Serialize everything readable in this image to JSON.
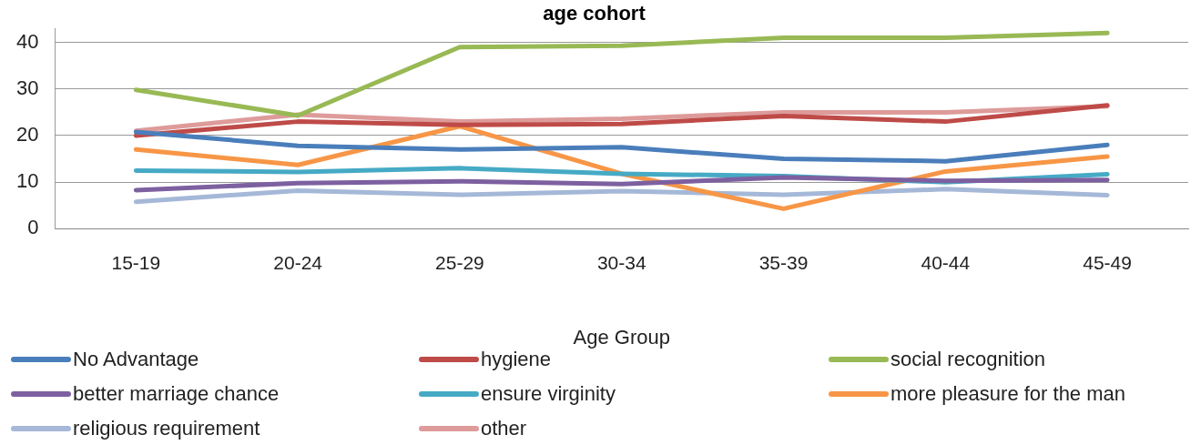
{
  "chart_data": {
    "type": "line",
    "title": "age cohort",
    "xlabel": "Age Group",
    "categories": [
      "15-19",
      "20-24",
      "25-29",
      "30-34",
      "35-39",
      "40-44",
      "45-49"
    ],
    "ylim": [
      0,
      43
    ],
    "yticks": [
      0,
      10,
      20,
      30,
      40
    ],
    "grid": "y",
    "legend": "bottom",
    "marker": "none",
    "line_style": "solid",
    "series": [
      {
        "name": "No Advantage",
        "color": "#4a7ebb",
        "values": [
          20.8,
          17.8,
          17,
          17.5,
          15,
          14.5,
          18
        ]
      },
      {
        "name": "hygiene",
        "color": "#be4b48",
        "values": [
          20,
          23,
          22.3,
          22.5,
          24.2,
          23,
          26.5
        ]
      },
      {
        "name": "social recognition",
        "color": "#98b954",
        "values": [
          29.8,
          24.3,
          39,
          39.3,
          41,
          41,
          42
        ]
      },
      {
        "name": "better marriage chance",
        "color": "#7d60a0",
        "values": [
          8.3,
          9.8,
          10.2,
          9.6,
          11,
          10.3,
          10.5
        ]
      },
      {
        "name": "ensure virginity",
        "color": "#46aac5",
        "values": [
          12.5,
          12.2,
          13,
          11.8,
          11.3,
          10,
          11.7
        ]
      },
      {
        "name": "more pleasure for the man",
        "color": "#f79646",
        "values": [
          17,
          13.7,
          22,
          11.8,
          4.3,
          12.3,
          15.5
        ]
      },
      {
        "name": "religious requirement",
        "color": "#a5b8d8",
        "values": [
          5.8,
          8.2,
          7.3,
          8.1,
          7.3,
          8.5,
          7.2
        ]
      },
      {
        "name": "other",
        "color": "#dd9b9a",
        "values": [
          21,
          24.5,
          23,
          23.6,
          25,
          25,
          26.3
        ]
      }
    ]
  }
}
